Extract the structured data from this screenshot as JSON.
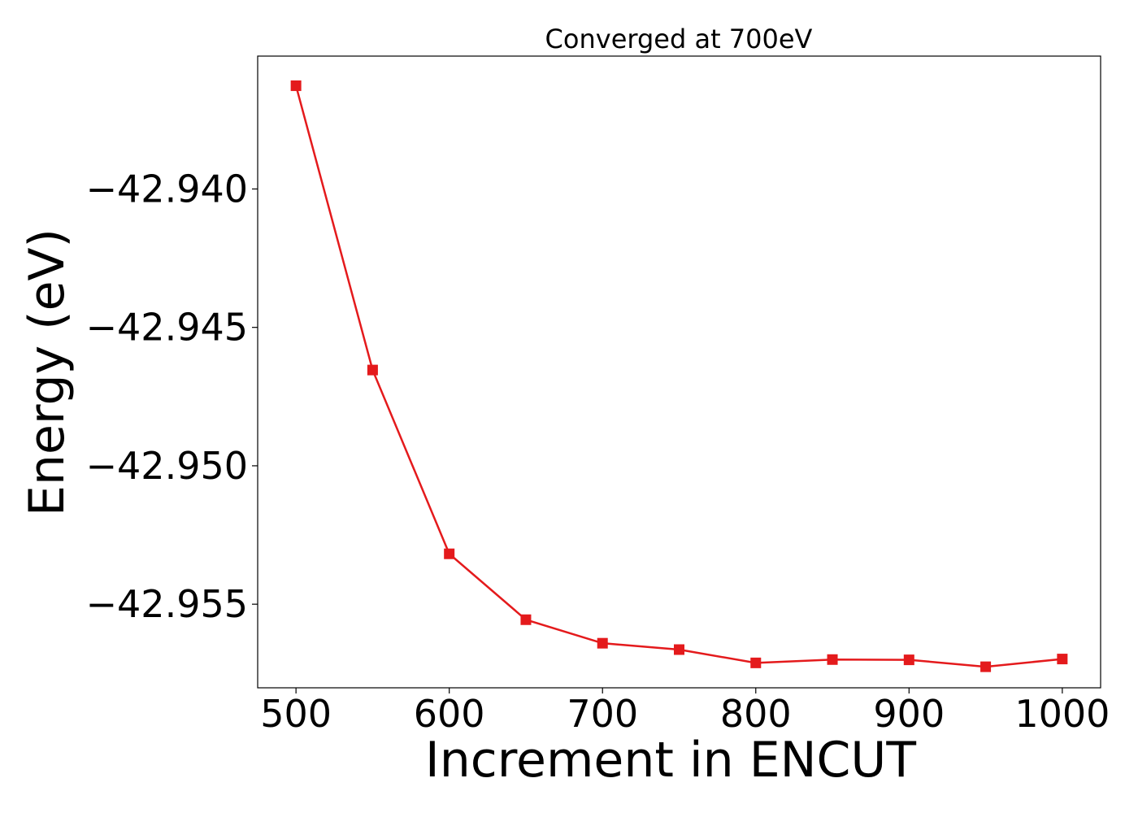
{
  "chart_data": {
    "type": "line",
    "title": "Converged at 700eV",
    "xlabel": "Increment in ENCUT",
    "ylabel": "Energy (eV)",
    "x": [
      500,
      550,
      600,
      650,
      700,
      750,
      800,
      850,
      900,
      950,
      1000
    ],
    "series": [
      {
        "values": [
          -42.93627,
          -42.94654,
          -42.95318,
          -42.95556,
          -42.95641,
          -42.95664,
          -42.95712,
          -42.957,
          -42.95701,
          -42.95726,
          -42.95698
        ],
        "color": "#e41a1c",
        "marker": "square"
      }
    ],
    "xlim": [
      475,
      1025
    ],
    "ylim": [
      -42.95802,
      -42.9352
    ],
    "xticks": [
      500,
      600,
      700,
      800,
      900,
      1000
    ],
    "xtick_labels": [
      "500",
      "600",
      "700",
      "800",
      "900",
      "1000"
    ],
    "yticks": [
      -42.94,
      -42.945,
      -42.95,
      -42.955
    ],
    "ytick_labels": [
      "−42.940",
      "−42.945",
      "−42.950",
      "−42.955"
    ],
    "grid": false,
    "legend": "none"
  }
}
